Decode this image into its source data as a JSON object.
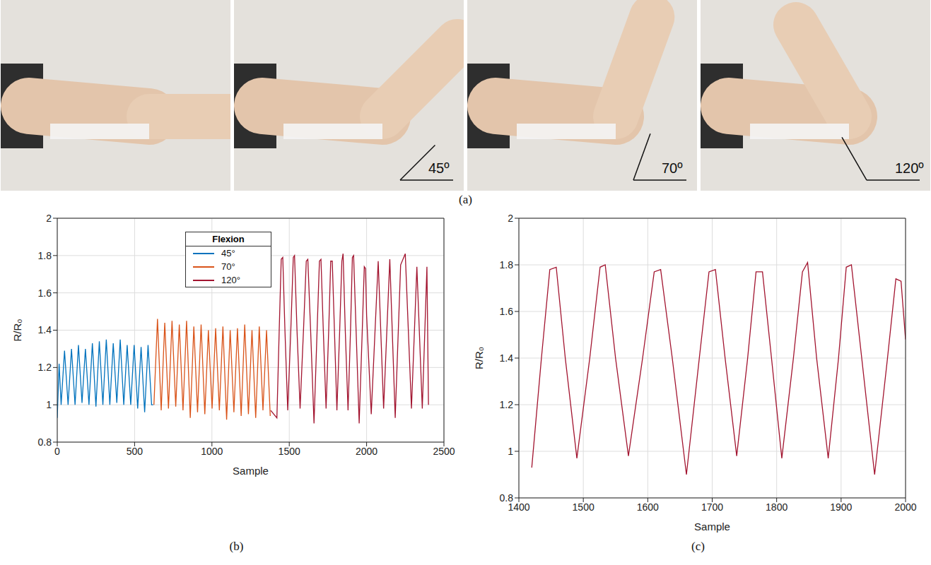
{
  "photos": {
    "label": "(a)",
    "angles": [
      "45º",
      "70º",
      "120º"
    ]
  },
  "chart_data": [
    {
      "type": "line",
      "label": "(b)",
      "xlabel": "Sample",
      "ylabel": "R/R₀",
      "xlim": [
        0,
        2500
      ],
      "xticks": [
        0,
        500,
        1000,
        1500,
        2000,
        2500
      ],
      "ylim": [
        0.8,
        2
      ],
      "yticks": [
        0.8,
        1,
        1.2,
        1.4,
        1.6,
        1.8,
        2
      ],
      "grid": true,
      "legend": "upper center",
      "legend_title": "Flexion",
      "series": [
        {
          "name": "45°",
          "color": "#0072bd",
          "x": [
            0,
            12,
            25,
            47,
            70,
            92,
            115,
            137,
            160,
            182,
            205,
            227,
            250,
            272,
            295,
            317,
            340,
            362,
            385,
            407,
            430,
            452,
            475,
            497,
            520,
            542,
            565,
            587,
            610,
            620
          ],
          "values": [
            0.93,
            1.22,
            1.0,
            1.29,
            1.0,
            1.3,
            1.0,
            1.32,
            1.01,
            1.3,
            1.0,
            1.33,
            0.99,
            1.34,
            1.0,
            1.35,
            1.0,
            1.33,
            1.01,
            1.35,
            1.0,
            1.32,
            1.0,
            1.32,
            0.98,
            1.31,
            0.96,
            1.32,
            1.0,
            1.0
          ]
        },
        {
          "name": "70°",
          "color": "#d95319",
          "x": [
            625,
            648,
            672,
            695,
            719,
            742,
            766,
            789,
            813,
            836,
            860,
            883,
            907,
            930,
            954,
            977,
            1001,
            1024,
            1048,
            1071,
            1095,
            1118,
            1142,
            1165,
            1189,
            1212,
            1236,
            1259,
            1283,
            1306,
            1330,
            1353,
            1377
          ],
          "values": [
            1.0,
            1.46,
            0.97,
            1.44,
            0.98,
            1.45,
            0.99,
            1.43,
            0.97,
            1.45,
            0.93,
            1.42,
            0.96,
            1.43,
            0.95,
            1.4,
            0.98,
            1.41,
            0.97,
            1.42,
            0.92,
            1.4,
            0.96,
            1.41,
            0.94,
            1.43,
            0.95,
            1.4,
            0.93,
            1.42,
            0.97,
            1.4,
            0.94
          ]
        },
        {
          "name": "120°",
          "color": "#a2142f",
          "x": [
            1380,
            1420,
            1435,
            1448,
            1458,
            1472,
            1490,
            1510,
            1526,
            1534,
            1550,
            1570,
            1592,
            1610,
            1620,
            1638,
            1660,
            1680,
            1695,
            1705,
            1720,
            1738,
            1755,
            1768,
            1778,
            1792,
            1808,
            1826,
            1840,
            1848,
            1862,
            1880,
            1896,
            1908,
            1916,
            1932,
            1952,
            1972,
            1985,
            1993,
            2000,
            2030,
            2075,
            2110,
            2150,
            2185,
            2220,
            2250,
            2290,
            2325,
            2360,
            2390,
            2400
          ],
          "values": [
            0.97,
            0.93,
            1.4,
            1.78,
            1.79,
            1.4,
            0.97,
            1.4,
            1.79,
            1.8,
            1.4,
            0.98,
            1.4,
            1.77,
            1.78,
            1.4,
            0.9,
            1.4,
            1.77,
            1.78,
            1.4,
            0.98,
            1.4,
            1.77,
            1.77,
            1.4,
            0.97,
            1.4,
            1.77,
            1.81,
            1.4,
            0.97,
            1.4,
            1.79,
            1.8,
            1.4,
            0.9,
            1.4,
            1.74,
            1.73,
            1.48,
            0.95,
            1.77,
            0.98,
            1.78,
            0.93,
            1.75,
            1.81,
            0.98,
            1.74,
            0.98,
            1.74,
            1.0
          ]
        }
      ]
    },
    {
      "type": "line",
      "label": "(c)",
      "xlabel": "Sample",
      "ylabel": "R/R₀",
      "xlim": [
        1400,
        2000
      ],
      "xticks": [
        1400,
        1500,
        1600,
        1700,
        1800,
        1900,
        2000
      ],
      "ylim": [
        0.8,
        2
      ],
      "yticks": [
        0.8,
        1,
        1.2,
        1.4,
        1.6,
        1.8,
        2
      ],
      "grid": true,
      "series": [
        {
          "color": "#a2142f",
          "x": [
            1420,
            1435,
            1448,
            1458,
            1472,
            1490,
            1510,
            1526,
            1534,
            1550,
            1570,
            1592,
            1610,
            1620,
            1638,
            1660,
            1680,
            1695,
            1705,
            1720,
            1738,
            1755,
            1768,
            1778,
            1792,
            1808,
            1826,
            1840,
            1848,
            1862,
            1880,
            1896,
            1908,
            1916,
            1932,
            1952,
            1972,
            1985,
            1993,
            2000
          ],
          "values": [
            0.93,
            1.4,
            1.78,
            1.79,
            1.4,
            0.97,
            1.4,
            1.79,
            1.8,
            1.4,
            0.98,
            1.4,
            1.77,
            1.78,
            1.4,
            0.9,
            1.4,
            1.77,
            1.78,
            1.4,
            0.98,
            1.4,
            1.77,
            1.77,
            1.4,
            0.97,
            1.4,
            1.77,
            1.81,
            1.4,
            0.97,
            1.4,
            1.79,
            1.8,
            1.4,
            0.9,
            1.4,
            1.74,
            1.73,
            1.48
          ]
        }
      ]
    }
  ]
}
